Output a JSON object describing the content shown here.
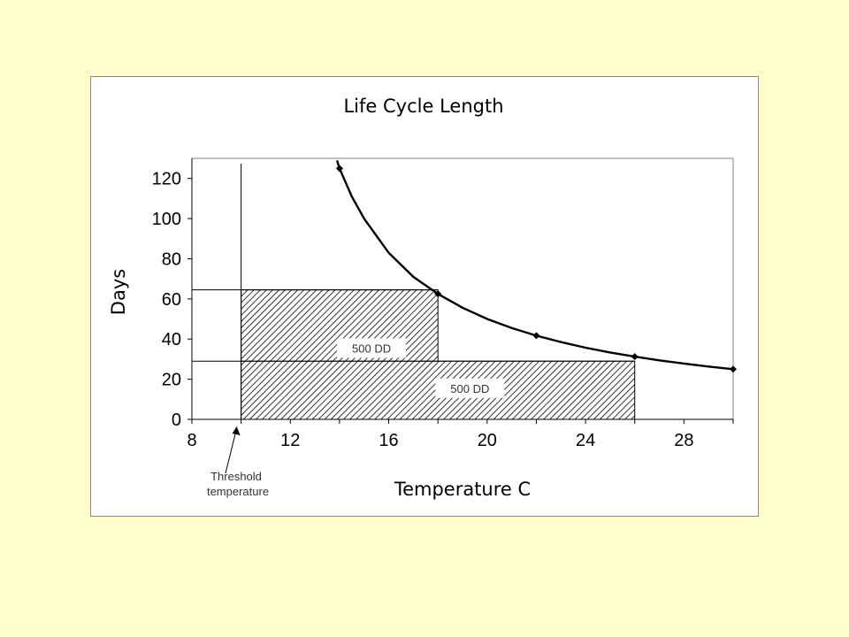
{
  "chart_data": {
    "type": "line",
    "title": "Life Cycle Length",
    "xlabel": "Temperature C",
    "ylabel": "Days",
    "xlim": [
      8,
      30
    ],
    "ylim": [
      0,
      130
    ],
    "xticks": [
      8,
      12,
      16,
      20,
      24,
      28
    ],
    "yticks": [
      0,
      20,
      40,
      60,
      80,
      100,
      120
    ],
    "grid": false,
    "threshold_temperature": 10,
    "series": [
      {
        "curve_x": [
          13.9,
          14.0,
          14.5,
          15,
          16,
          17,
          18,
          19,
          20,
          21,
          22,
          23,
          24,
          25,
          26,
          27,
          28,
          29,
          30
        ],
        "curve_y": [
          129,
          125,
          111,
          100,
          83,
          71,
          62.5,
          55.6,
          50,
          45.5,
          41.7,
          38.5,
          35.7,
          33.3,
          31.25,
          29.4,
          27.8,
          26.3,
          25
        ],
        "markers_x": [
          14,
          18,
          22,
          26,
          30
        ],
        "markers_y": [
          125,
          62.5,
          41.7,
          31.25,
          25
        ]
      }
    ],
    "annotations": [
      {
        "label": "500 DD",
        "x0": 10,
        "x1": 18,
        "y0": 0,
        "y1": 64.5,
        "label_x": 15.3,
        "label_y": 35.5
      },
      {
        "label": "500 DD",
        "x0": 10,
        "x1": 26,
        "y0": 0,
        "y1": 29,
        "label_x": 19.3,
        "label_y": 15.5
      }
    ],
    "threshold_label": [
      "Threshold",
      "temperature"
    ]
  }
}
